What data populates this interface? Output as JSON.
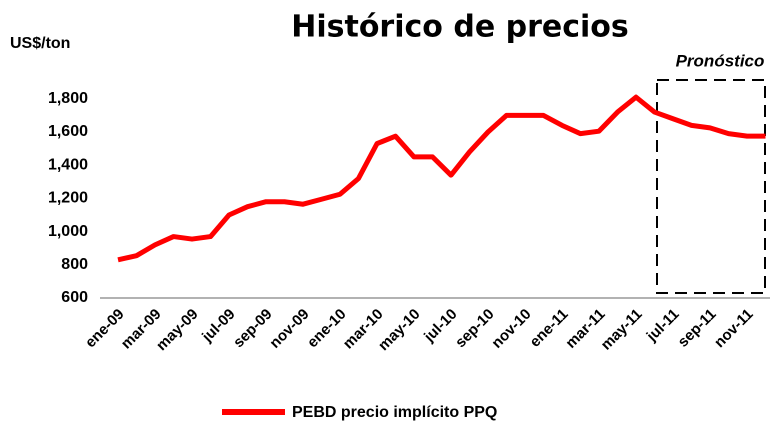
{
  "chart_data": {
    "type": "line",
    "title": "Histórico de precios",
    "y_label": "US$/ton",
    "annotation": "Pronóstico",
    "categories": [
      "ene-09",
      null,
      "mar-09",
      null,
      "may-09",
      null,
      "jul-09",
      null,
      "sep-09",
      null,
      "nov-09",
      null,
      "ene-10",
      null,
      "mar-10",
      null,
      "may-10",
      null,
      "jul-10",
      null,
      "sep-10",
      null,
      "nov-10",
      null,
      "ene-11",
      null,
      "mar-11",
      null,
      "may-11",
      null,
      "jul-11",
      null,
      "sep-11",
      null,
      "nov-11",
      null
    ],
    "series": [
      {
        "name": "PEBD precio implícito PPQ",
        "color": "#ff0000",
        "values": [
          830,
          855,
          920,
          970,
          955,
          970,
          1100,
          1150,
          1180,
          1180,
          1165,
          1195,
          1225,
          1320,
          1530,
          1575,
          1450,
          1450,
          1340,
          1480,
          1600,
          1700,
          1700,
          1700,
          1640,
          1590,
          1605,
          1720,
          1810,
          1720,
          1680,
          1640,
          1625,
          1590,
          1575,
          1575
        ]
      }
    ],
    "ylim": [
      600,
      1900
    ],
    "yticks": [
      600,
      800,
      {
        "value": 1000,
        "label": "1,000"
      },
      {
        "value": 1200,
        "label": "1,200"
      },
      {
        "value": 1400,
        "label": "1,400"
      },
      {
        "value": 1600,
        "label": "1,600"
      },
      {
        "value": 1800,
        "label": "1,800"
      }
    ]
  }
}
